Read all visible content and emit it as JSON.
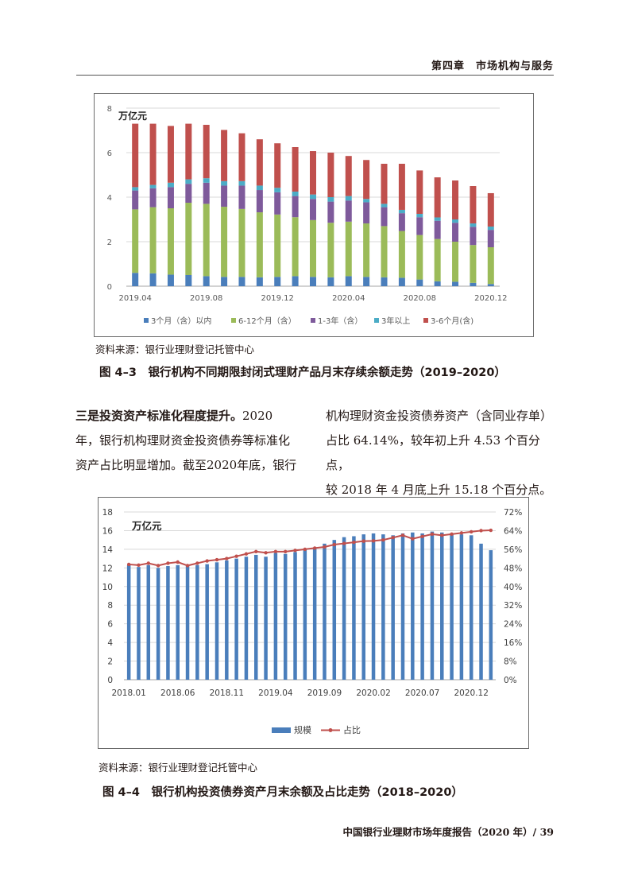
{
  "header": {
    "chapter": "第四章　市场机构与服务"
  },
  "figure3": {
    "unit": "万亿元",
    "source": "资料来源：银行业理财登记托管中心",
    "caption": "图 4–3　银行机构不同期限封闭式理财产品月末存续余额走势（2019–2020）",
    "chart_data": {
      "type": "bar",
      "stacked": true,
      "unit": "万亿元",
      "ylim": [
        0,
        8
      ],
      "yticks": [
        "0",
        "2",
        "4",
        "6",
        "8"
      ],
      "xtick_labels": [
        "2019.04",
        "2019.08",
        "2019.12",
        "2020.04",
        "2020.08",
        "2020.12"
      ],
      "categories": [
        "2019.04",
        "2019.05",
        "2019.06",
        "2019.07",
        "2019.08",
        "2019.09",
        "2019.10",
        "2019.11",
        "2019.12",
        "2020.01",
        "2020.02",
        "2020.03",
        "2020.04",
        "2020.05",
        "2020.06",
        "2020.07",
        "2020.08",
        "2020.09",
        "2020.10",
        "2020.11",
        "2020.12"
      ],
      "series": [
        {
          "name": "3个月（含）以内",
          "color": "#4a7ebb",
          "values": [
            0.6,
            0.58,
            0.52,
            0.5,
            0.45,
            0.42,
            0.42,
            0.4,
            0.42,
            0.45,
            0.42,
            0.4,
            0.45,
            0.42,
            0.4,
            0.38,
            0.3,
            0.22,
            0.2,
            0.15,
            0.1
          ]
        },
        {
          "name": "6-12个月（含）",
          "color": "#9bbb59",
          "values": [
            2.85,
            2.97,
            2.98,
            3.25,
            3.25,
            3.15,
            3.05,
            2.92,
            2.8,
            2.65,
            2.55,
            2.45,
            2.45,
            2.4,
            2.3,
            2.1,
            2.0,
            1.9,
            1.8,
            1.7,
            1.65
          ]
        },
        {
          "name": "1-3年（含）",
          "color": "#7e5a9b",
          "values": [
            0.85,
            0.85,
            0.95,
            0.85,
            0.95,
            0.95,
            1.05,
            1.0,
            1.0,
            0.95,
            0.95,
            0.95,
            0.95,
            0.95,
            0.85,
            0.8,
            0.8,
            0.82,
            0.85,
            0.82,
            0.78
          ]
        },
        {
          "name": "3年以上",
          "color": "#4bacc6",
          "values": [
            0.15,
            0.15,
            0.2,
            0.2,
            0.2,
            0.2,
            0.2,
            0.2,
            0.2,
            0.2,
            0.2,
            0.2,
            0.2,
            0.15,
            0.15,
            0.15,
            0.15,
            0.15,
            0.15,
            0.15,
            0.15
          ]
        },
        {
          "name": "3-6个月(含)",
          "color": "#c0504d",
          "values": [
            2.85,
            2.75,
            2.55,
            2.5,
            2.4,
            2.3,
            2.15,
            2.08,
            2.0,
            2.0,
            1.95,
            2.0,
            1.8,
            1.75,
            1.8,
            2.07,
            1.95,
            1.8,
            1.75,
            1.68,
            1.5
          ]
        }
      ]
    }
  },
  "paragraph": {
    "left": [
      {
        "bold": "三是投资资产标准化程度提升。",
        "text": "2020"
      },
      {
        "bold": "",
        "text": "年，银行机构理财资金投资债券等标准化"
      },
      {
        "bold": "",
        "text": "资产占比明显增加。截至2020年底，银行"
      }
    ],
    "right": [
      "机构理财资金投资债券资产（含同业存单）",
      "占比 64.14%，较年初上升 4.53 个百分点，",
      "较 2018 年 4 月底上升 15.18 个百分点。"
    ]
  },
  "figure4": {
    "unit": "万亿元",
    "source": "资料来源：银行业理财登记托管中心",
    "caption": "图 4–4　银行机构投资债券资产月末余额及占比走势（2018–2020）",
    "chart_data": {
      "type": "bar+line",
      "unit": "万亿元",
      "ylim_left": [
        0,
        18
      ],
      "ylim_right": [
        0,
        72
      ],
      "yticks_left": [
        "0",
        "2",
        "4",
        "6",
        "8",
        "10",
        "12",
        "14",
        "16",
        "18"
      ],
      "yticks_right": [
        "0%",
        "8%",
        "16%",
        "24%",
        "32%",
        "40%",
        "48%",
        "56%",
        "64%",
        "72%"
      ],
      "xtick_labels": [
        "2018.01",
        "2018.06",
        "2018.11",
        "2019.04",
        "2019.09",
        "2020.02",
        "2020.07",
        "2020.12"
      ],
      "series": [
        {
          "name": "规模",
          "type": "bar",
          "color": "#4a7ebb",
          "axis": "left",
          "values": [
            12.3,
            12.1,
            12.3,
            12.0,
            12.2,
            12.3,
            12.2,
            12.3,
            12.4,
            12.6,
            12.8,
            13.0,
            13.2,
            13.4,
            13.2,
            13.6,
            13.5,
            13.7,
            14.0,
            14.2,
            14.6,
            15.0,
            15.3,
            15.4,
            15.6,
            15.7,
            15.6,
            15.5,
            15.7,
            15.8,
            15.7,
            15.9,
            15.8,
            15.7,
            15.6,
            15.5,
            14.6,
            13.9
          ]
        },
        {
          "name": "占比",
          "type": "line",
          "color": "#c0504d",
          "axis": "right",
          "values": [
            49.5,
            49.2,
            50.0,
            49.0,
            50.0,
            50.5,
            49.0,
            50.0,
            51.0,
            51.5,
            52.0,
            53.0,
            54.0,
            55.0,
            54.5,
            55.0,
            55.0,
            55.5,
            56.0,
            56.5,
            57.0,
            58.0,
            58.5,
            59.0,
            59.5,
            59.6,
            60.0,
            61.0,
            62.0,
            60.5,
            61.5,
            62.5,
            62.0,
            62.5,
            63.0,
            63.5,
            64.0,
            64.14
          ]
        }
      ]
    }
  },
  "footer": {
    "text": "中国银行业理财市场年度报告（2020 年）/ 39"
  }
}
